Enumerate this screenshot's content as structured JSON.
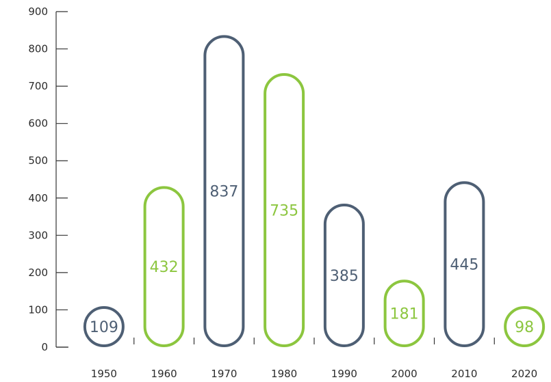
{
  "chart_data": {
    "type": "bar",
    "title": "",
    "xlabel": "",
    "ylabel": "",
    "categories": [
      "1950",
      "1960",
      "1970",
      "1980",
      "1990",
      "2000",
      "2010",
      "2020"
    ],
    "values": [
      109,
      432,
      837,
      735,
      385,
      181,
      445,
      98
    ],
    "value_labels": [
      "109",
      "432",
      "837",
      "735",
      "385",
      "181",
      "445",
      "98"
    ],
    "ylim": [
      0,
      900
    ],
    "yticks": [
      "0",
      "100",
      "200",
      "300",
      "400",
      "500",
      "600",
      "700",
      "800",
      "900"
    ],
    "grid": false,
    "legend": "none",
    "bar_colors": [
      "#4e5f74",
      "#8cc63f",
      "#4e5f74",
      "#8cc63f",
      "#4e5f74",
      "#8cc63f",
      "#4e5f74",
      "#8cc63f"
    ],
    "axis_color": "#333333"
  }
}
